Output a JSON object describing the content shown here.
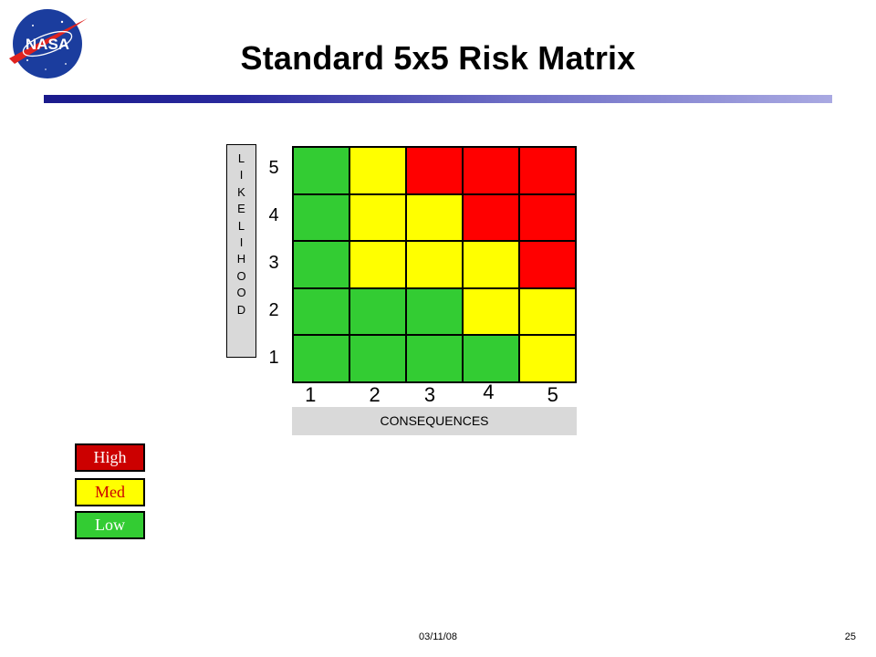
{
  "title": "Standard 5x5 Risk Matrix",
  "logo_text": "NASA",
  "y_axis": {
    "label": "LIKELIHOOD",
    "ticks": [
      "5",
      "4",
      "3",
      "2",
      "1"
    ]
  },
  "x_axis": {
    "label": "CONSEQUENCES",
    "ticks": [
      "1",
      "2",
      "3",
      "4",
      "5"
    ]
  },
  "colors": {
    "high": "#ff0000",
    "med": "#ffff00",
    "low": "#33cc33",
    "high_legend": "#cc0000"
  },
  "matrix": {
    "rows_top_to_bottom": [
      {
        "likelihood": "5",
        "cells": [
          "low",
          "med",
          "high",
          "high",
          "high"
        ]
      },
      {
        "likelihood": "4",
        "cells": [
          "low",
          "med",
          "med",
          "high",
          "high"
        ]
      },
      {
        "likelihood": "3",
        "cells": [
          "low",
          "med",
          "med",
          "med",
          "high"
        ]
      },
      {
        "likelihood": "2",
        "cells": [
          "low",
          "low",
          "low",
          "med",
          "med"
        ]
      },
      {
        "likelihood": "1",
        "cells": [
          "low",
          "low",
          "low",
          "low",
          "med"
        ]
      }
    ]
  },
  "legend": [
    {
      "key": "high",
      "label": "High"
    },
    {
      "key": "med",
      "label": "Med"
    },
    {
      "key": "low",
      "label": "Low"
    }
  ],
  "footer": {
    "date": "03/11/08",
    "page": "25"
  }
}
